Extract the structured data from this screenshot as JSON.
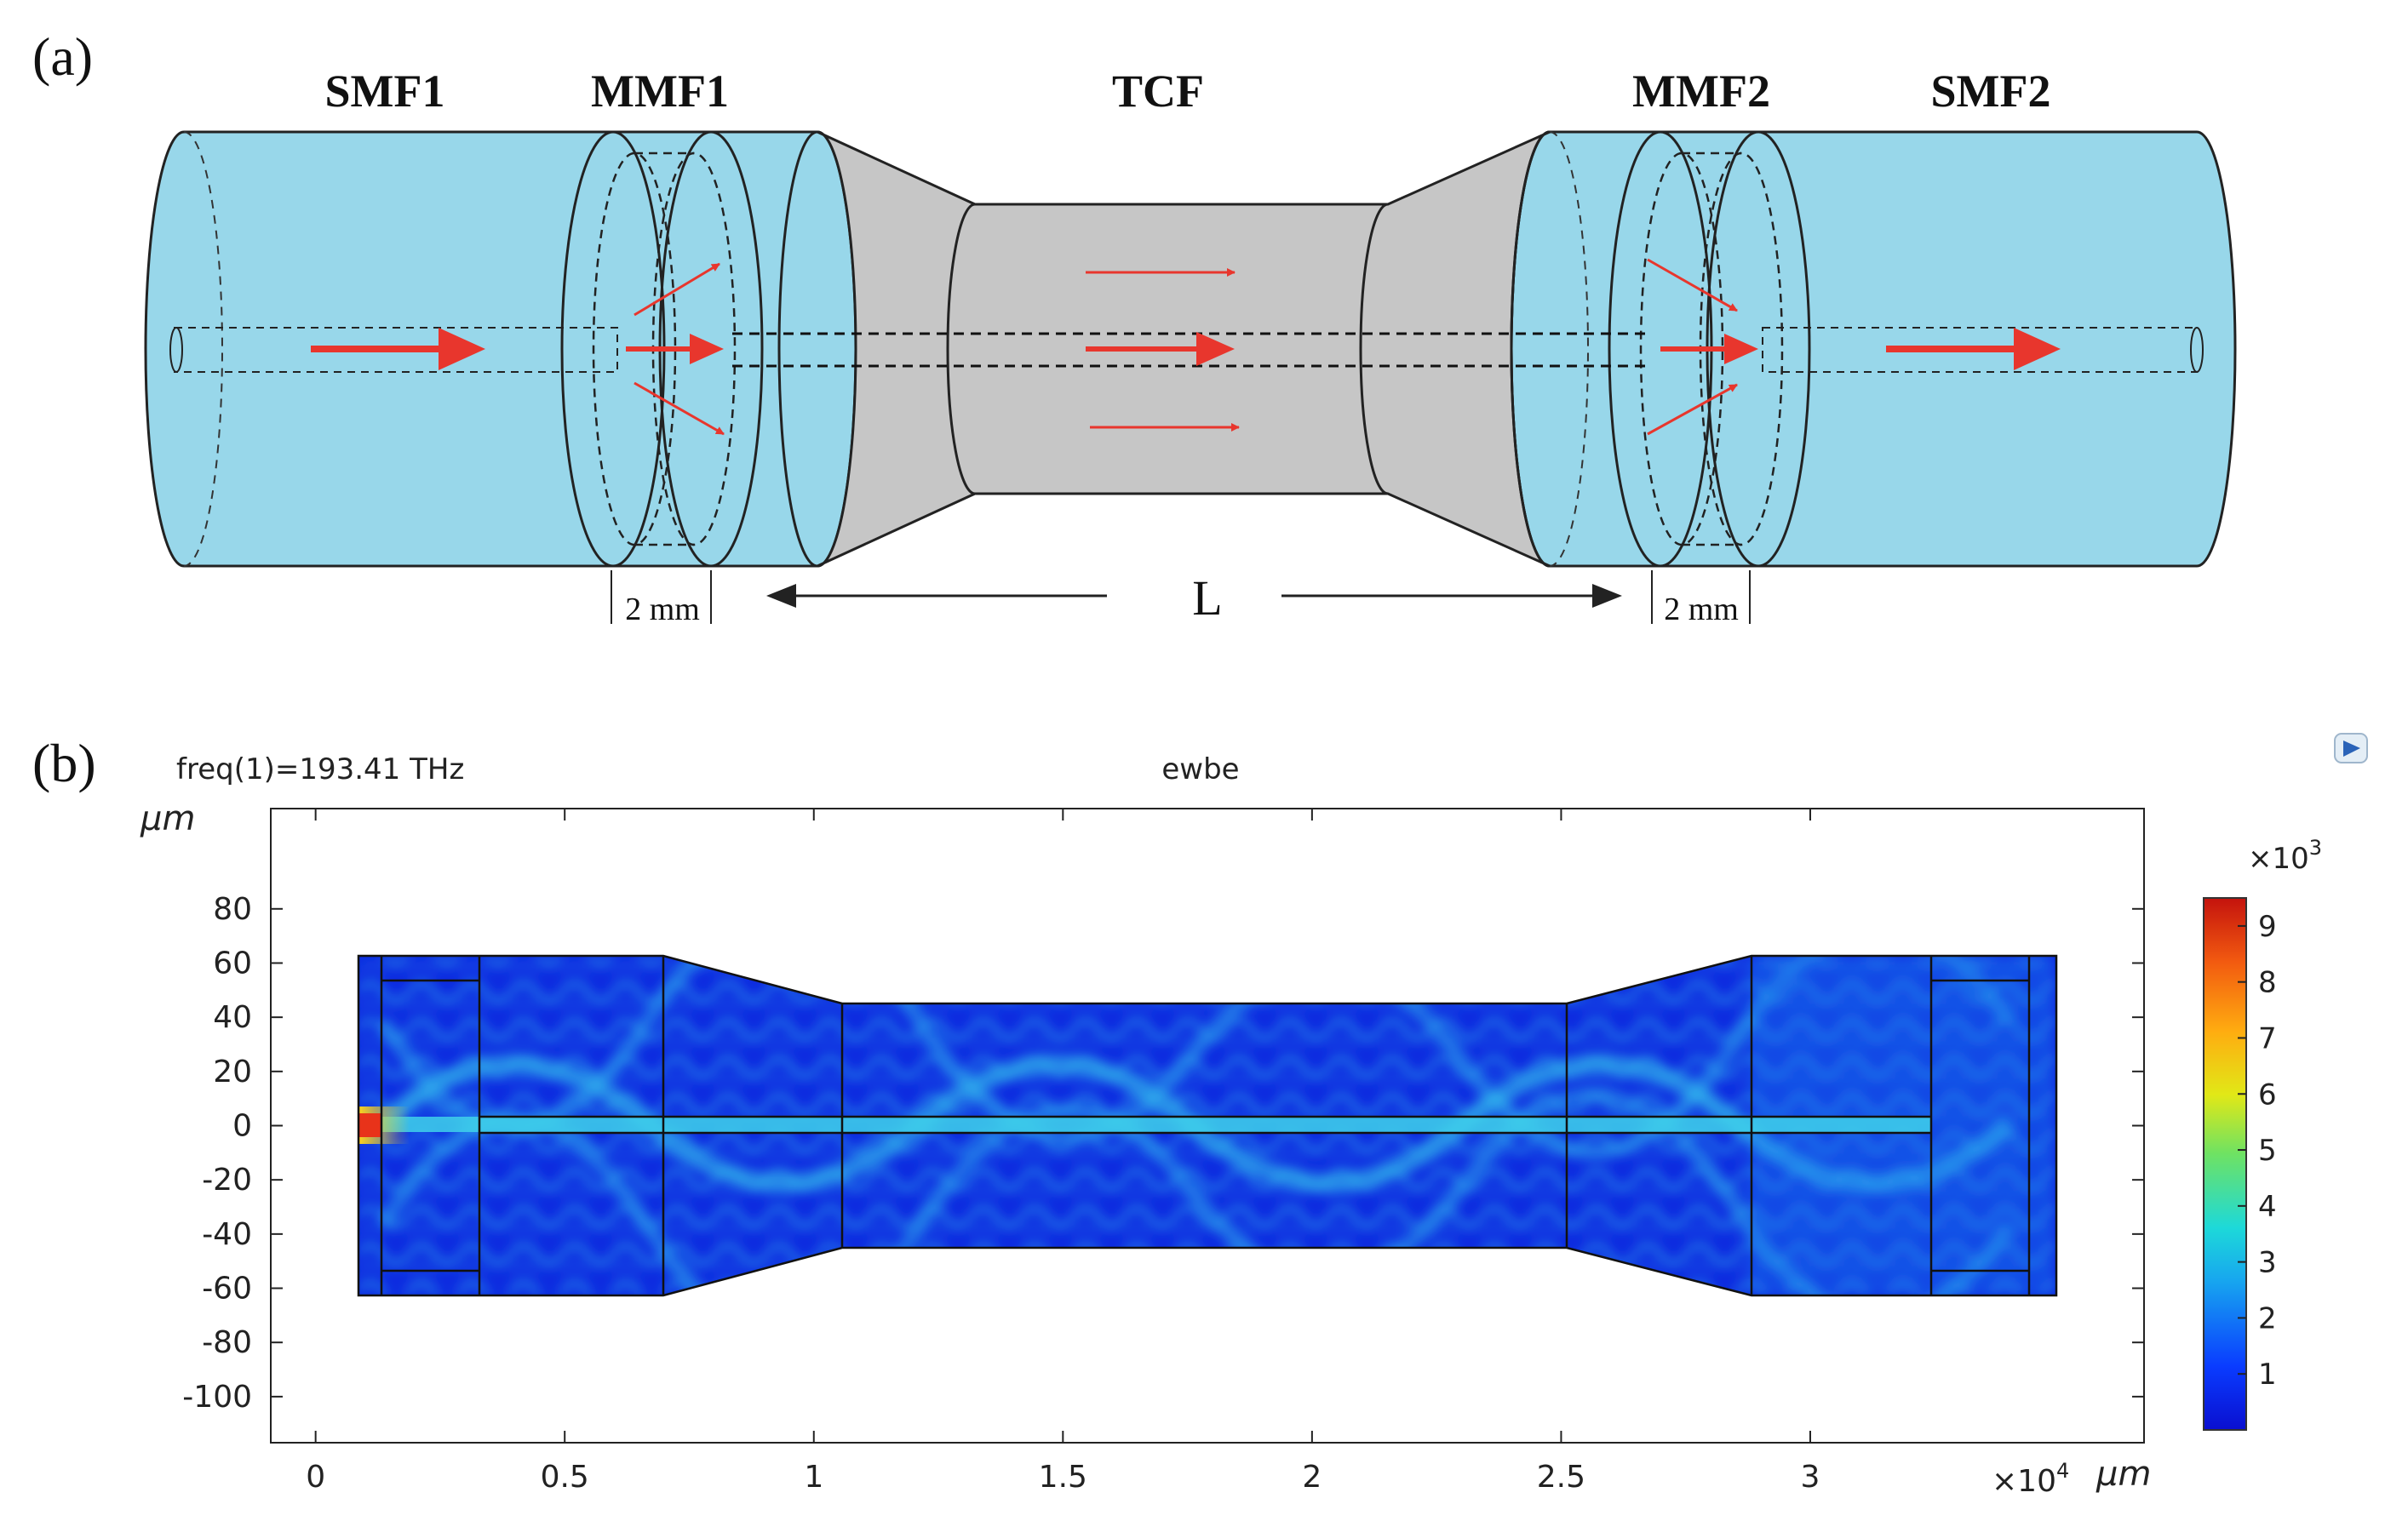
{
  "panel_a": {
    "label": "(a)",
    "sections": {
      "smf1": "SMF1",
      "mmf1": "MMF1",
      "tcf": "TCF",
      "mmf2": "MMF2",
      "smf2": "SMF2"
    },
    "dim_left": "2 mm",
    "dim_right": "2 mm",
    "length_label": "L"
  },
  "panel_b": {
    "label": "(b)",
    "freq_label": "freq(1)=193.41 THz",
    "plot_title": "ewbe",
    "y_unit": "μm",
    "x_unit": "μm",
    "x_multiplier": "×10",
    "x_multiplier_exp": "4",
    "colorbar_multiplier": "×10",
    "colorbar_multiplier_exp": "3"
  },
  "chart_data": {
    "type": "heatmap",
    "title": "ewbe",
    "subtitle": "freq(1)=193.41 THz",
    "xlabel": "μm",
    "ylabel": "μm",
    "x_ticks": [
      0,
      0.5,
      1,
      1.5,
      2,
      2.5,
      3
    ],
    "x_tick_labels": [
      "0",
      "0.5",
      "1",
      "1.5",
      "2",
      "2.5",
      "3"
    ],
    "x_scale": "×10^4",
    "xlim": [
      -0.09,
      3.67
    ],
    "y_ticks": [
      80,
      60,
      40,
      20,
      0,
      -20,
      -40,
      -60,
      -80,
      -100
    ],
    "y_tick_labels": [
      "80",
      "60",
      "40",
      "20",
      "0",
      "-20",
      "-40",
      "-60",
      "-80",
      "-100"
    ],
    "ylim": [
      -117,
      117
    ],
    "colorbar_ticks": [
      1,
      2,
      3,
      4,
      5,
      6,
      7,
      8,
      9
    ],
    "colorbar_tick_labels": [
      "1",
      "2",
      "3",
      "4",
      "5",
      "6",
      "7",
      "8",
      "9"
    ],
    "colorbar_scale": "×10^3",
    "colorbar_range": [
      0,
      9.5
    ],
    "geometry_outline": {
      "x": [
        0,
        0.625,
        1.0,
        2.5,
        2.875,
        3.5
      ],
      "half_width": [
        62.5,
        62.5,
        45,
        45,
        62.5,
        62.5
      ]
    },
    "section_boundaries_x": [
      0.05,
      0.25,
      0.625,
      1.0,
      2.5,
      2.875,
      3.25,
      3.45
    ],
    "colors": {
      "low": "#0b22d6",
      "mid": "#1ec8e6",
      "high": "#e52a10"
    }
  }
}
